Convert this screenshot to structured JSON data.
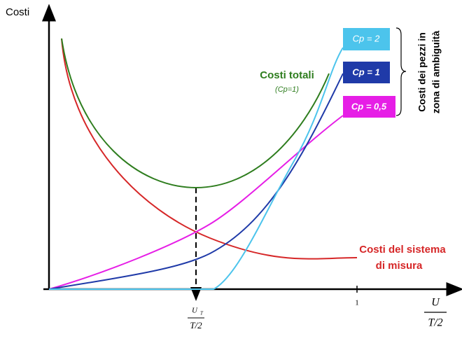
{
  "y_axis": {
    "label": "Costi"
  },
  "x_axis": {
    "tick": "1",
    "label": {
      "numerator": "U",
      "denominator": "T/2"
    },
    "marker": {
      "numerator": "U",
      "subscript": "T",
      "denominator": "T/2"
    }
  },
  "curves": {
    "total": {
      "label": "Costi totali",
      "note": "(Cp=1)"
    },
    "system": {
      "label": [
        "Costi del sistema",
        "di misura"
      ]
    }
  },
  "legend": {
    "items": [
      "Cp = 2",
      "Cp = 1",
      "Cp = 0,5"
    ],
    "brace_label": [
      "Costi dei pezzi in",
      "zona di ambiguità"
    ]
  }
}
